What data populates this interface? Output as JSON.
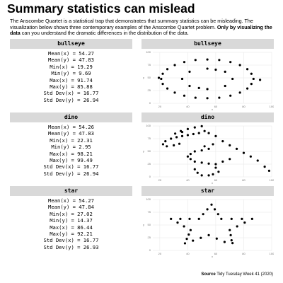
{
  "title": "Summary statistics can mislead",
  "subtitle": [
    "The Anscombe Quartet is a statistical trap that demonstrates that summary statistics can be misleading.  The visualization below shows three contemporary examples of the Anscombe Quartet problem. ",
    "Only by visualizing the data",
    " can you understand the dramatic differences in the distribution of the data."
  ],
  "source_label": "Source",
  "source": "Tidy Tuesday Week 41 (2020)",
  "chart_data": [
    {
      "type": "scatter",
      "title": "bullseye",
      "x_label": "x",
      "y_label": "y",
      "color": "#000000",
      "grid": true,
      "stats": [
        "Mean(x) = 54.27",
        "Mean(y) = 47.83",
        "Min(x) = 19.29",
        "Min(y) = 9.69",
        "Max(x) = 91.74",
        "Max(y) = 85.88",
        "Std Dev(x) = 16.77",
        "Std Dev(y) = 26.94"
      ],
      "xlim": [
        15,
        100
      ],
      "ylim": [
        0,
        100
      ],
      "xticks": [
        20,
        40,
        60,
        80,
        100
      ],
      "yticks": [
        0,
        25,
        50,
        75,
        100
      ],
      "x": [
        87,
        85.5,
        82.6,
        77.3,
        70.5,
        62.5,
        54,
        45.5,
        37.5,
        30.7,
        25.4,
        22.1,
        21,
        22.1,
        25.4,
        30.7,
        37.5,
        45.5,
        54,
        62.5,
        70.5,
        77.3,
        82.6,
        85.5,
        72,
        66.7,
        54,
        41.3,
        36,
        41.3,
        54,
        66.7,
        60,
        48,
        19.3,
        91.7
      ],
      "y": [
        48,
        58,
        67,
        75,
        81,
        85,
        86,
        85,
        81,
        75,
        67,
        58,
        48,
        38,
        29,
        21,
        15,
        11,
        10,
        11,
        15,
        21,
        29,
        38,
        48,
        62,
        68,
        62,
        48,
        34,
        28,
        34,
        66,
        30,
        50,
        46
      ]
    },
    {
      "type": "scatter",
      "title": "dino",
      "x_label": "x",
      "y_label": "y",
      "color": "#000000",
      "grid": true,
      "stats": [
        "Mean(x) = 54.26",
        "Mean(y) = 47.83",
        "Min(x) = 22.31",
        "Min(y) = 2.95",
        "Max(x) = 98.21",
        "Max(y) = 99.49",
        "Std Dev(x) = 16.77",
        "Std Dev(y) = 26.94"
      ],
      "xlim": [
        15,
        100
      ],
      "ylim": [
        0,
        100
      ],
      "xticks": [
        20,
        40,
        60,
        80,
        100
      ],
      "yticks": [
        0,
        25,
        50,
        75,
        100
      ],
      "x": [
        31,
        35,
        40,
        45,
        50,
        52,
        48,
        44,
        40,
        36,
        32,
        28,
        24,
        22.3,
        25,
        30,
        34,
        55,
        60,
        65,
        70,
        75,
        80,
        85,
        90,
        95,
        98.2,
        55,
        50,
        45,
        42,
        40,
        42,
        45,
        50,
        55,
        60,
        65,
        70,
        45,
        47,
        50,
        60,
        62,
        58,
        55,
        36,
        52,
        58
      ],
      "y": [
        85,
        90,
        94,
        97,
        99.5,
        90,
        86,
        84,
        82,
        80,
        78,
        75,
        70,
        64,
        60,
        62,
        65,
        86,
        80,
        70,
        62,
        55,
        47,
        40,
        32,
        20,
        12,
        55,
        52,
        50,
        45,
        40,
        35,
        30,
        28,
        26,
        25,
        30,
        35,
        15,
        8,
        3,
        18,
        10,
        5,
        2.95,
        88,
        60,
        64
      ]
    },
    {
      "type": "scatter",
      "title": "star",
      "x_label": "x",
      "y_label": "y",
      "color": "#000000",
      "grid": true,
      "stats": [
        "Mean(x) = 54.27",
        "Mean(y) = 47.84",
        "Min(x) = 27.02",
        "Min(y) = 14.37",
        "Max(x) = 86.44",
        "Max(y) = 92.21",
        "Std Dev(x) = 16.77",
        "Std Dev(y) = 26.93"
      ],
      "xlim": [
        15,
        100
      ],
      "ylim": [
        0,
        100
      ],
      "xticks": [
        20,
        40,
        60,
        80,
        100
      ],
      "yticks": [
        0,
        25,
        50,
        75,
        100
      ],
      "x": [
        57,
        59.3,
        61.7,
        64,
        71.3,
        78.7,
        86,
        80.7,
        75.3,
        70,
        70.7,
        71.3,
        72,
        66.3,
        60.7,
        55,
        49.3,
        43.7,
        38,
        39.3,
        40.7,
        42,
        37.3,
        32.7,
        28,
        34.7,
        41.3,
        48,
        51,
        54
      ],
      "y": [
        90,
        80.7,
        71.3,
        62,
        62,
        62,
        62,
        54.7,
        47.3,
        40,
        30,
        20,
        14.4,
        16.7,
        23.3,
        30,
        24.7,
        19.3,
        14,
        22.7,
        31.3,
        40,
        47.3,
        54.7,
        62,
        62,
        62,
        62,
        71.3,
        80.7
      ]
    }
  ]
}
